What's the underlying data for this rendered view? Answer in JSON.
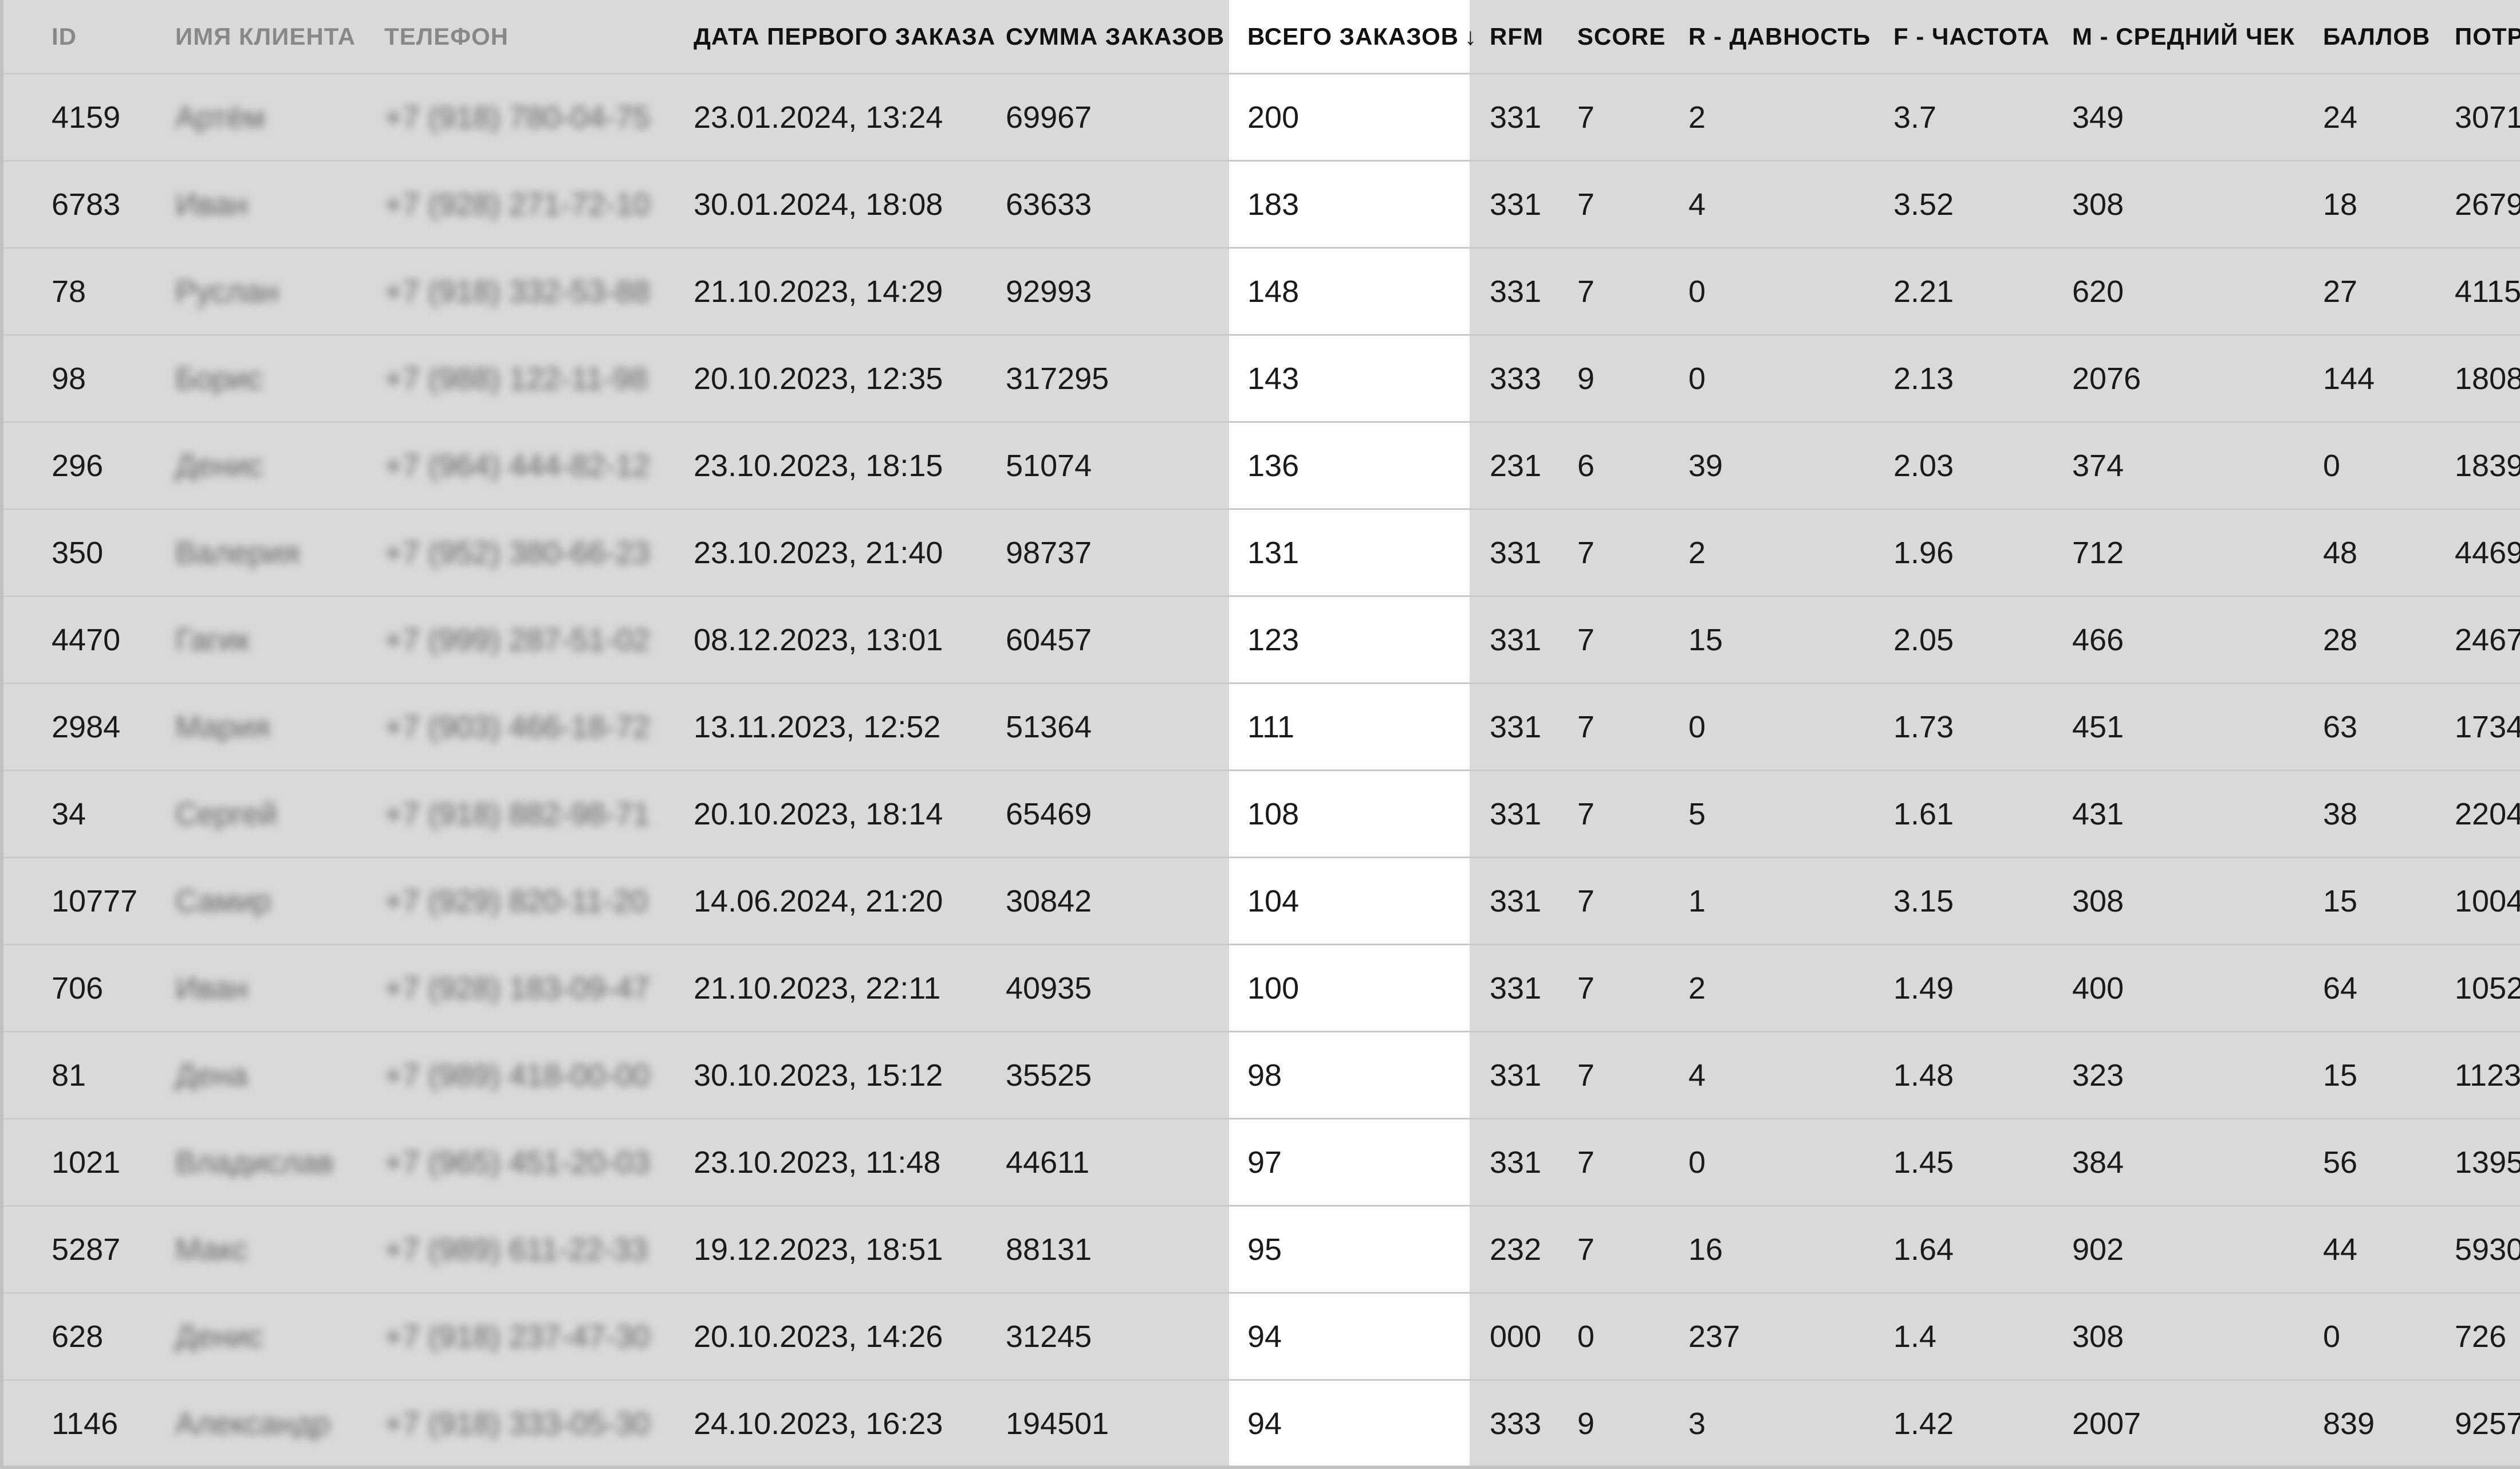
{
  "table": {
    "columns": [
      {
        "key": "id",
        "label": "ID"
      },
      {
        "key": "name",
        "label": "ИМЯ КЛИЕНТА"
      },
      {
        "key": "phone",
        "label": "ТЕЛЕФОН"
      },
      {
        "key": "first_order",
        "label": "ДАТА ПЕРВОГО ЗАКАЗА"
      },
      {
        "key": "sum",
        "label": "СУММА ЗАКАЗОВ"
      },
      {
        "key": "total",
        "label": "ВСЕГО ЗАКАЗОВ",
        "sort_indicator": "↓"
      },
      {
        "key": "rfm",
        "label": "RFM"
      },
      {
        "key": "score",
        "label": "SCORE"
      },
      {
        "key": "recency",
        "label": "R - ДАВНОСТЬ"
      },
      {
        "key": "frequency",
        "label": "F - ЧАСТОТА"
      },
      {
        "key": "monetary",
        "label": "M - СРЕДНИЙ ЧЕК"
      },
      {
        "key": "points",
        "label": "БАЛЛОВ"
      },
      {
        "key": "spent",
        "label": "ПОТР"
      }
    ],
    "rows": [
      {
        "id": "4159",
        "name": "Артём",
        "phone": "+7 (918) 780-04-75",
        "first_order": "23.01.2024, 13:24",
        "sum": "69967",
        "total": "200",
        "rfm": "331",
        "score": "7",
        "recency": "2",
        "frequency": "3.7",
        "monetary": "349",
        "points": "24",
        "spent": "3071"
      },
      {
        "id": "6783",
        "name": "Иван",
        "phone": "+7 (928) 271-72-10",
        "first_order": "30.01.2024, 18:08",
        "sum": "63633",
        "total": "183",
        "rfm": "331",
        "score": "7",
        "recency": "4",
        "frequency": "3.52",
        "monetary": "308",
        "points": "18",
        "spent": "2679"
      },
      {
        "id": "78",
        "name": "Руслан",
        "phone": "+7 (918) 332-53-88",
        "first_order": "21.10.2023, 14:29",
        "sum": "92993",
        "total": "148",
        "rfm": "331",
        "score": "7",
        "recency": "0",
        "frequency": "2.21",
        "monetary": "620",
        "points": "27",
        "spent": "4115"
      },
      {
        "id": "98",
        "name": "Борис",
        "phone": "+7 (988) 122-11-98",
        "first_order": "20.10.2023, 12:35",
        "sum": "317295",
        "total": "143",
        "rfm": "333",
        "score": "9",
        "recency": "0",
        "frequency": "2.13",
        "monetary": "2076",
        "points": "144",
        "spent": "1808"
      },
      {
        "id": "296",
        "name": "Денис",
        "phone": "+7 (964) 444-82-12",
        "first_order": "23.10.2023, 18:15",
        "sum": "51074",
        "total": "136",
        "rfm": "231",
        "score": "6",
        "recency": "39",
        "frequency": "2.03",
        "monetary": "374",
        "points": "0",
        "spent": "1839"
      },
      {
        "id": "350",
        "name": "Валерия",
        "phone": "+7 (952) 380-66-23",
        "first_order": "23.10.2023, 21:40",
        "sum": "98737",
        "total": "131",
        "rfm": "331",
        "score": "7",
        "recency": "2",
        "frequency": "1.96",
        "monetary": "712",
        "points": "48",
        "spent": "4469"
      },
      {
        "id": "4470",
        "name": "Гагик",
        "phone": "+7 (999) 287-51-02",
        "first_order": "08.12.2023, 13:01",
        "sum": "60457",
        "total": "123",
        "rfm": "331",
        "score": "7",
        "recency": "15",
        "frequency": "2.05",
        "monetary": "466",
        "points": "28",
        "spent": "2467"
      },
      {
        "id": "2984",
        "name": "Мария",
        "phone": "+7 (903) 466-18-72",
        "first_order": "13.11.2023, 12:52",
        "sum": "51364",
        "total": "111",
        "rfm": "331",
        "score": "7",
        "recency": "0",
        "frequency": "1.73",
        "monetary": "451",
        "points": "63",
        "spent": "1734"
      },
      {
        "id": "34",
        "name": "Сергей",
        "phone": "+7 (918) 882-98-71",
        "first_order": "20.10.2023, 18:14",
        "sum": "65469",
        "total": "108",
        "rfm": "331",
        "score": "7",
        "recency": "5",
        "frequency": "1.61",
        "monetary": "431",
        "points": "38",
        "spent": "2204"
      },
      {
        "id": "10777",
        "name": "Самир",
        "phone": "+7 (929) 820-11-20",
        "first_order": "14.06.2024, 21:20",
        "sum": "30842",
        "total": "104",
        "rfm": "331",
        "score": "7",
        "recency": "1",
        "frequency": "3.15",
        "monetary": "308",
        "points": "15",
        "spent": "1004"
      },
      {
        "id": "706",
        "name": "Иван",
        "phone": "+7 (928) 183-09-47",
        "first_order": "21.10.2023, 22:11",
        "sum": "40935",
        "total": "100",
        "rfm": "331",
        "score": "7",
        "recency": "2",
        "frequency": "1.49",
        "monetary": "400",
        "points": "64",
        "spent": "1052"
      },
      {
        "id": "81",
        "name": "Дена",
        "phone": "+7 (989) 418-00-00",
        "first_order": "30.10.2023, 15:12",
        "sum": "35525",
        "total": "98",
        "rfm": "331",
        "score": "7",
        "recency": "4",
        "frequency": "1.48",
        "monetary": "323",
        "points": "15",
        "spent": "1123"
      },
      {
        "id": "1021",
        "name": "Владислав",
        "phone": "+7 (965) 451-20-03",
        "first_order": "23.10.2023, 11:48",
        "sum": "44611",
        "total": "97",
        "rfm": "331",
        "score": "7",
        "recency": "0",
        "frequency": "1.45",
        "monetary": "384",
        "points": "56",
        "spent": "1395"
      },
      {
        "id": "5287",
        "name": "Макс",
        "phone": "+7 (989) 611-22-33",
        "first_order": "19.12.2023, 18:51",
        "sum": "88131",
        "total": "95",
        "rfm": "232",
        "score": "7",
        "recency": "16",
        "frequency": "1.64",
        "monetary": "902",
        "points": "44",
        "spent": "5930"
      },
      {
        "id": "628",
        "name": "Денис",
        "phone": "+7 (918) 237-47-30",
        "first_order": "20.10.2023, 14:26",
        "sum": "31245",
        "total": "94",
        "rfm": "000",
        "score": "0",
        "recency": "237",
        "frequency": "1.4",
        "monetary": "308",
        "points": "0",
        "spent": "726"
      },
      {
        "id": "1146",
        "name": "Александр",
        "phone": "+7 (918) 333-05-30",
        "first_order": "24.10.2023, 16:23",
        "sum": "194501",
        "total": "94",
        "rfm": "333",
        "score": "9",
        "recency": "3",
        "frequency": "1.42",
        "monetary": "2007",
        "points": "839",
        "spent": "9257"
      }
    ]
  }
}
